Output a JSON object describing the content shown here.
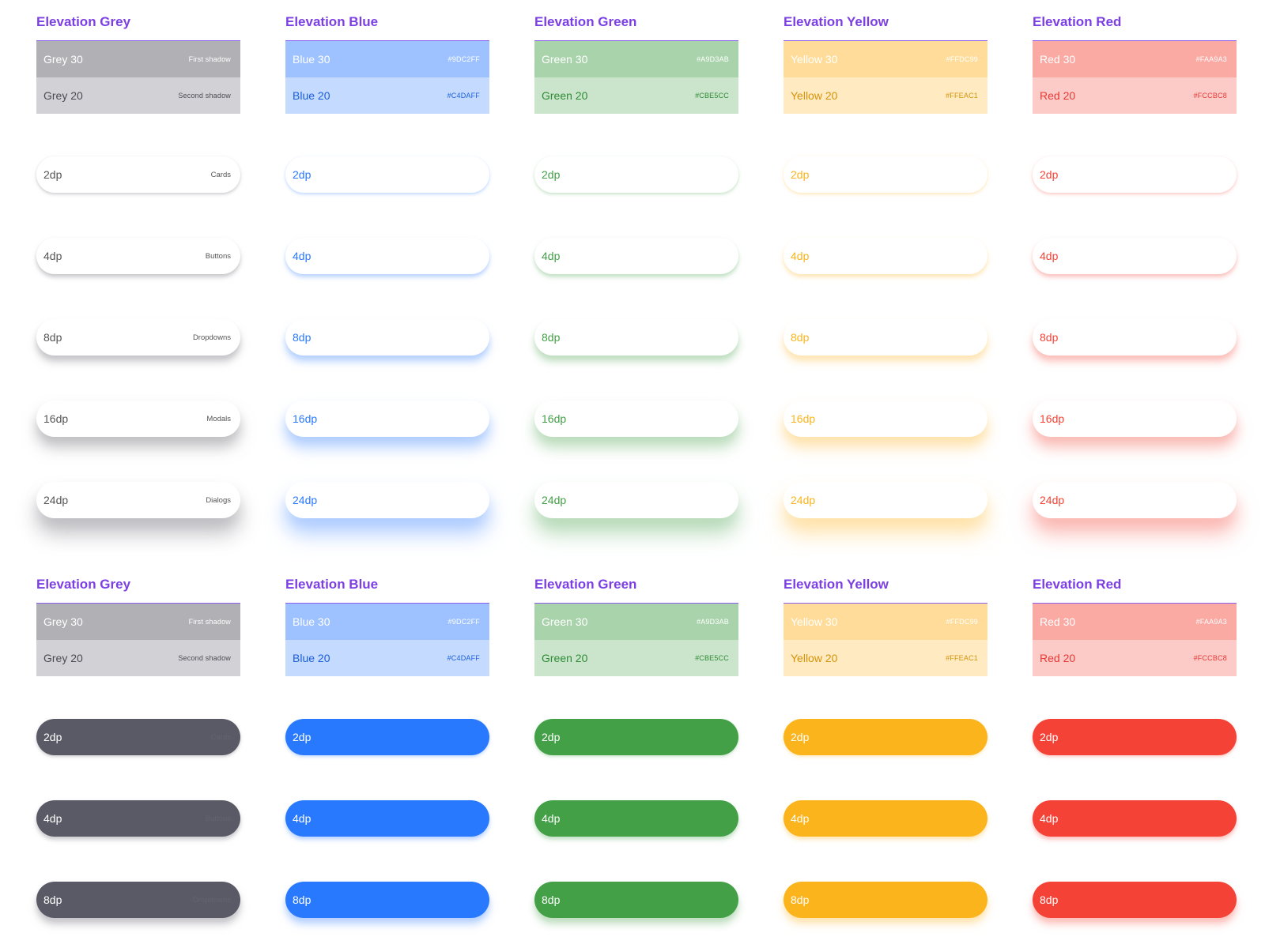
{
  "sections": [
    {
      "id": "white-cards",
      "columns": [
        {
          "title": "Elevation Grey",
          "accent": "#5a5a66",
          "swatches": [
            {
              "name": "Grey 30",
              "note": "First shadow",
              "bg": "#b0b0b5",
              "name_color": "#ffffff",
              "note_color": "#ffffff"
            },
            {
              "name": "Grey 20",
              "note": "Second shadow",
              "bg": "#d2d2d6",
              "name_color": "#4a4a52",
              "note_color": "#4a4a52"
            }
          ],
          "cards": [
            {
              "label": "2dp",
              "desc": "Cards"
            },
            {
              "label": "4dp",
              "desc": "Buttons"
            },
            {
              "label": "8dp",
              "desc": "Dropdowns"
            },
            {
              "label": "16dp",
              "desc": "Modals"
            },
            {
              "label": "24dp",
              "desc": "Dialogs"
            }
          ]
        },
        {
          "title": "Elevation Blue",
          "accent": "#2979ff",
          "swatches": [
            {
              "name": "Blue 30",
              "note": "#9DC2FF",
              "bg": "#9dc2ff",
              "name_color": "#ffffff",
              "note_color": "#ffffff"
            },
            {
              "name": "Blue 20",
              "note": "#C4DAFF",
              "bg": "#c4daff",
              "name_color": "#1a5ed8",
              "note_color": "#1a5ed8"
            }
          ],
          "cards": [
            {
              "label": "2dp",
              "desc": ""
            },
            {
              "label": "4dp",
              "desc": ""
            },
            {
              "label": "8dp",
              "desc": ""
            },
            {
              "label": "16dp",
              "desc": ""
            },
            {
              "label": "24dp",
              "desc": ""
            }
          ]
        },
        {
          "title": "Elevation Green",
          "accent": "#43a047",
          "swatches": [
            {
              "name": "Green 30",
              "note": "#A9D3AB",
              "bg": "#a9d3ab",
              "name_color": "#ffffff",
              "note_color": "#ffffff"
            },
            {
              "name": "Green 20",
              "note": "#CBE5CC",
              "bg": "#cbe5cc",
              "name_color": "#2e8b34",
              "note_color": "#2e8b34"
            }
          ],
          "cards": [
            {
              "label": "2dp",
              "desc": ""
            },
            {
              "label": "4dp",
              "desc": ""
            },
            {
              "label": "8dp",
              "desc": ""
            },
            {
              "label": "16dp",
              "desc": ""
            },
            {
              "label": "24dp",
              "desc": ""
            }
          ]
        },
        {
          "title": "Elevation Yellow",
          "accent": "#fbb41c",
          "swatches": [
            {
              "name": "Yellow 30",
              "note": "#FFDC99",
              "bg": "#ffdc99",
              "name_color": "#ffffff",
              "note_color": "#ffffff"
            },
            {
              "name": "Yellow 20",
              "note": "#FFEAC1",
              "bg": "#ffeac1",
              "name_color": "#d4930a",
              "note_color": "#d4930a"
            }
          ],
          "cards": [
            {
              "label": "2dp",
              "desc": ""
            },
            {
              "label": "4dp",
              "desc": ""
            },
            {
              "label": "8dp",
              "desc": ""
            },
            {
              "label": "16dp",
              "desc": ""
            },
            {
              "label": "24dp",
              "desc": ""
            }
          ]
        },
        {
          "title": "Elevation Red",
          "accent": "#f44336",
          "swatches": [
            {
              "name": "Red 30",
              "note": "#FAA9A3",
              "bg": "#faa9a3",
              "name_color": "#ffffff",
              "note_color": "#ffffff"
            },
            {
              "name": "Red 20",
              "note": "#FCCBC8",
              "bg": "#fccbc8",
              "name_color": "#e53935",
              "note_color": "#e53935"
            }
          ],
          "cards": [
            {
              "label": "2dp",
              "desc": ""
            },
            {
              "label": "4dp",
              "desc": ""
            },
            {
              "label": "8dp",
              "desc": ""
            },
            {
              "label": "16dp",
              "desc": ""
            },
            {
              "label": "24dp",
              "desc": ""
            }
          ]
        }
      ]
    },
    {
      "id": "solid-cards",
      "columns": [
        {
          "title": "Elevation Grey",
          "accent": "#5a5a66",
          "swatches": [
            {
              "name": "Grey 30",
              "note": "First shadow",
              "bg": "#b0b0b5",
              "name_color": "#ffffff",
              "note_color": "#ffffff"
            },
            {
              "name": "Grey 20",
              "note": "Second shadow",
              "bg": "#d2d2d6",
              "name_color": "#4a4a52",
              "note_color": "#4a4a52"
            }
          ],
          "cards": [
            {
              "label": "2dp",
              "desc": "Cards"
            },
            {
              "label": "4dp",
              "desc": "Buttons"
            },
            {
              "label": "8dp",
              "desc": "Dropdowns"
            }
          ]
        },
        {
          "title": "Elevation Blue",
          "accent": "#2979ff",
          "swatches": [
            {
              "name": "Blue 30",
              "note": "#9DC2FF",
              "bg": "#9dc2ff",
              "name_color": "#ffffff",
              "note_color": "#ffffff"
            },
            {
              "name": "Blue 20",
              "note": "#C4DAFF",
              "bg": "#c4daff",
              "name_color": "#1a5ed8",
              "note_color": "#1a5ed8"
            }
          ],
          "cards": [
            {
              "label": "2dp",
              "desc": ""
            },
            {
              "label": "4dp",
              "desc": ""
            },
            {
              "label": "8dp",
              "desc": ""
            }
          ]
        },
        {
          "title": "Elevation Green",
          "accent": "#43a047",
          "swatches": [
            {
              "name": "Green 30",
              "note": "#A9D3AB",
              "bg": "#a9d3ab",
              "name_color": "#ffffff",
              "note_color": "#ffffff"
            },
            {
              "name": "Green 20",
              "note": "#CBE5CC",
              "bg": "#cbe5cc",
              "name_color": "#2e8b34",
              "note_color": "#2e8b34"
            }
          ],
          "cards": [
            {
              "label": "2dp",
              "desc": ""
            },
            {
              "label": "4dp",
              "desc": ""
            },
            {
              "label": "8dp",
              "desc": ""
            }
          ]
        },
        {
          "title": "Elevation Yellow",
          "accent": "#fbb41c",
          "swatches": [
            {
              "name": "Yellow 30",
              "note": "#FFDC99",
              "bg": "#ffdc99",
              "name_color": "#ffffff",
              "note_color": "#ffffff"
            },
            {
              "name": "Yellow 20",
              "note": "#FFEAC1",
              "bg": "#ffeac1",
              "name_color": "#d4930a",
              "note_color": "#d4930a"
            }
          ],
          "cards": [
            {
              "label": "2dp",
              "desc": ""
            },
            {
              "label": "4dp",
              "desc": ""
            },
            {
              "label": "8dp",
              "desc": ""
            }
          ]
        },
        {
          "title": "Elevation Red",
          "accent": "#f44336",
          "swatches": [
            {
              "name": "Red 30",
              "note": "#FAA9A3",
              "bg": "#faa9a3",
              "name_color": "#ffffff",
              "note_color": "#ffffff"
            },
            {
              "name": "Red 20",
              "note": "#FCCBC8",
              "bg": "#fccbc8",
              "name_color": "#e53935",
              "note_color": "#e53935"
            }
          ],
          "cards": [
            {
              "label": "2dp",
              "desc": ""
            },
            {
              "label": "4dp",
              "desc": ""
            },
            {
              "label": "8dp",
              "desc": ""
            }
          ]
        }
      ]
    }
  ]
}
